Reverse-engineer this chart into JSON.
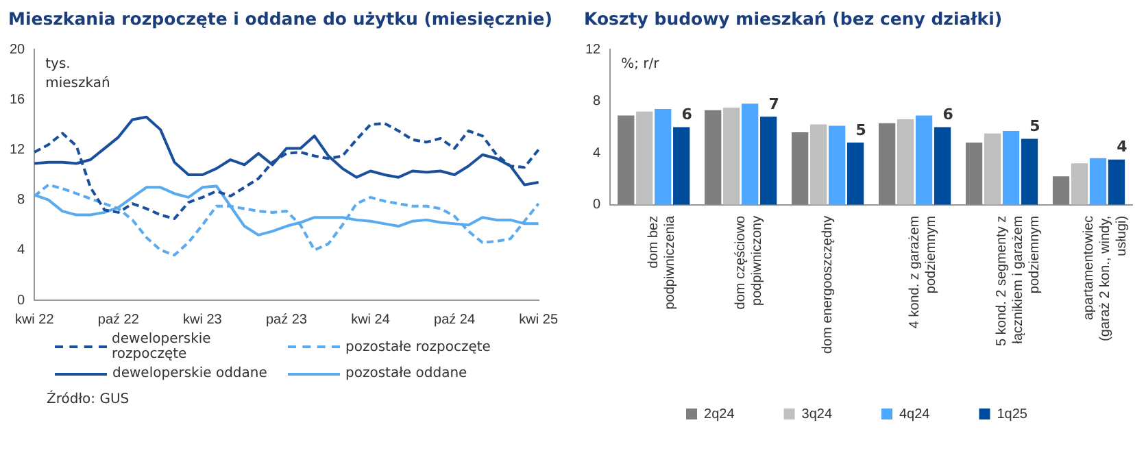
{
  "chart_data": [
    {
      "type": "line",
      "title": "Mieszkania rozpoczęte i oddane do użytku (miesięcznie)",
      "ylabel": "tys.\nmieszkań",
      "categories": [
        "kwi 22",
        null,
        null,
        null,
        null,
        null,
        "paź 22",
        null,
        null,
        null,
        null,
        null,
        "kwi 23",
        null,
        null,
        null,
        null,
        null,
        "paź 23",
        null,
        null,
        null,
        null,
        null,
        "kwi 24",
        null,
        null,
        null,
        null,
        null,
        "paź 24",
        null,
        null,
        null,
        null,
        null,
        "kwi 25"
      ],
      "series": [
        {
          "name": "deweloperskie rozpoczęte",
          "color": "#1a4f9c",
          "line_style": "dashed",
          "values": [
            11.8,
            12.4,
            13.3,
            12.3,
            9.0,
            7.2,
            7.0,
            7.7,
            7.3,
            6.8,
            6.5,
            7.8,
            8.2,
            8.7,
            8.3,
            9.0,
            9.7,
            11.0,
            11.7,
            11.8,
            11.5,
            11.3,
            11.5,
            12.8,
            14.0,
            14.1,
            13.5,
            12.8,
            12.6,
            12.9,
            12.1,
            13.5,
            13.1,
            11.6,
            10.7,
            10.6,
            12.0
          ]
        },
        {
          "name": "pozostałe rozpoczęte",
          "color": "#5aaaf0",
          "line_style": "dashed",
          "values": [
            8.3,
            9.2,
            8.9,
            8.5,
            8.1,
            7.7,
            7.3,
            6.4,
            5.0,
            4.0,
            3.6,
            4.6,
            6.0,
            7.5,
            7.5,
            7.3,
            7.1,
            7.0,
            7.1,
            6.0,
            4.0,
            4.5,
            6.0,
            7.7,
            8.2,
            7.9,
            7.7,
            7.5,
            7.5,
            7.3,
            6.7,
            5.5,
            4.6,
            4.7,
            4.9,
            6.3,
            7.7
          ]
        },
        {
          "name": "deweloperskie oddane",
          "color": "#1a4f9c",
          "line_style": "solid",
          "values": [
            10.9,
            11.0,
            11.0,
            10.9,
            11.2,
            12.1,
            13.0,
            14.4,
            14.6,
            13.6,
            11.0,
            10.0,
            10.0,
            10.5,
            11.2,
            10.8,
            11.7,
            10.8,
            12.1,
            12.1,
            13.1,
            11.5,
            10.5,
            9.8,
            10.3,
            10.0,
            9.8,
            10.3,
            10.2,
            10.3,
            10.0,
            10.7,
            11.6,
            11.3,
            10.7,
            9.2,
            9.4
          ]
        },
        {
          "name": "pozostałe oddane",
          "color": "#5aaaf0",
          "line_style": "solid",
          "values": [
            8.4,
            8.0,
            7.1,
            6.8,
            6.8,
            7.0,
            7.4,
            8.2,
            9.0,
            9.0,
            8.5,
            8.2,
            9.0,
            9.1,
            7.5,
            5.9,
            5.2,
            5.5,
            5.9,
            6.2,
            6.6,
            6.6,
            6.6,
            6.4,
            6.3,
            6.1,
            5.9,
            6.3,
            6.4,
            6.2,
            6.1,
            6.0,
            6.6,
            6.4,
            6.4,
            6.1,
            6.1
          ]
        }
      ],
      "ylim": [
        0,
        20
      ],
      "yticks": [
        0,
        4,
        8,
        12,
        16,
        20
      ],
      "grid": false,
      "marker": "none",
      "legend": "bottom",
      "annotations": [
        "Źródło: GUS"
      ]
    },
    {
      "type": "bar",
      "title": "Koszty budowy mieszkań (bez ceny działki)",
      "ylabel": "%; r/r",
      "categories": [
        "dom bez\npodpiwniczenia",
        "dom częściowo\npodpiwniczony",
        "dom energooszczędny",
        "4 kond. z garażem\npodziemnym",
        "5 kond. 2 segmenty z\nłącznikiem i garażem\npodziemnym",
        "apartamentowiec\n(garaż 2 kon., windy,\nusługi)"
      ],
      "series": [
        {
          "name": "2q24",
          "color": "#7f7f7f",
          "values": [
            6.9,
            7.3,
            5.6,
            6.3,
            4.8,
            2.2
          ]
        },
        {
          "name": "3q24",
          "color": "#bfbfbf",
          "values": [
            7.2,
            7.5,
            6.2,
            6.6,
            5.5,
            3.2
          ]
        },
        {
          "name": "4q24",
          "color": "#4da6ff",
          "values": [
            7.4,
            7.8,
            6.1,
            6.9,
            5.7,
            3.6
          ]
        },
        {
          "name": "1q25",
          "color": "#004c9c",
          "values": [
            6.0,
            6.8,
            4.8,
            6.0,
            5.1,
            3.5
          ],
          "value_labels": [
            "6",
            "7",
            "5",
            "6",
            "5",
            "4"
          ]
        }
      ],
      "ylim": [
        0,
        12
      ],
      "yticks": [
        0,
        4,
        8,
        12
      ],
      "grid": false,
      "legend": "bottom"
    }
  ]
}
